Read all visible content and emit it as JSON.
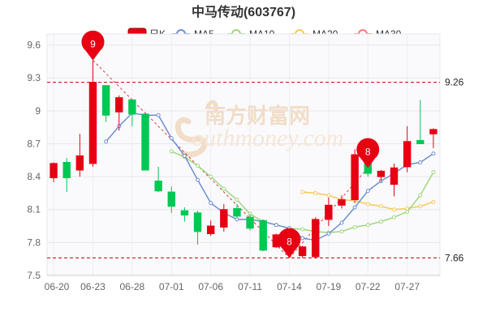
{
  "chart_data": {
    "type": "candlestick",
    "title": "中马传动(603767)",
    "legend": [
      {
        "key": "k",
        "label": "日K",
        "color": "#e60012"
      },
      {
        "key": "ma5",
        "label": "MA5",
        "color": "#6f8fcf"
      },
      {
        "key": "ma10",
        "label": "MA10",
        "color": "#9fd67e"
      },
      {
        "key": "ma20",
        "label": "MA20",
        "color": "#f7c85a"
      },
      {
        "key": "ma30",
        "label": "MA30",
        "color": "#f07b7b"
      }
    ],
    "legend_position": "top",
    "y_ticks": [
      "7.5",
      "7.8",
      "8.1",
      "8.4",
      "8.7",
      "9",
      "9.3",
      "9.6"
    ],
    "ylim": [
      7.5,
      9.7
    ],
    "x_tick_labels": [
      {
        "i": 0,
        "label": "06-20"
      },
      {
        "i": 3,
        "label": "06-23"
      },
      {
        "i": 6,
        "label": "06-28"
      },
      {
        "i": 9,
        "label": "07-01"
      },
      {
        "i": 12,
        "label": "07-06"
      },
      {
        "i": 15,
        "label": "07-11"
      },
      {
        "i": 18,
        "label": "07-14"
      },
      {
        "i": 21,
        "label": "07-19"
      },
      {
        "i": 24,
        "label": "07-22"
      },
      {
        "i": 27,
        "label": "07-27"
      }
    ],
    "up_color": "#e60012",
    "down_color": "#00c853",
    "grid": true,
    "candles": [
      {
        "o": 8.39,
        "c": 8.52,
        "h": 8.53,
        "l": 8.35
      },
      {
        "o": 8.53,
        "c": 8.39,
        "h": 8.57,
        "l": 8.26
      },
      {
        "o": 8.46,
        "c": 8.59,
        "h": 8.79,
        "l": 8.4
      },
      {
        "o": 8.52,
        "c": 9.26,
        "h": 9.46,
        "l": 8.49
      },
      {
        "o": 9.23,
        "c": 8.96,
        "h": 9.23,
        "l": 8.9
      },
      {
        "o": 8.99,
        "c": 9.12,
        "h": 9.14,
        "l": 8.82
      },
      {
        "o": 9.1,
        "c": 8.97,
        "h": 9.1,
        "l": 8.86
      },
      {
        "o": 8.97,
        "c": 8.46,
        "h": 8.97,
        "l": 8.46
      },
      {
        "o": 8.36,
        "c": 8.27,
        "h": 8.49,
        "l": 8.26
      },
      {
        "o": 8.26,
        "c": 8.13,
        "h": 8.31,
        "l": 8.07
      },
      {
        "o": 8.09,
        "c": 8.05,
        "h": 8.12,
        "l": 7.99
      },
      {
        "o": 8.07,
        "c": 7.9,
        "h": 8.09,
        "l": 7.78
      },
      {
        "o": 7.88,
        "c": 7.95,
        "h": 8.0,
        "l": 7.86
      },
      {
        "o": 7.94,
        "c": 8.1,
        "h": 8.15,
        "l": 7.9
      },
      {
        "o": 8.11,
        "c": 8.04,
        "h": 8.15,
        "l": 8.02
      },
      {
        "o": 8.03,
        "c": 7.93,
        "h": 8.06,
        "l": 7.91
      },
      {
        "o": 8.0,
        "c": 7.73,
        "h": 8.0,
        "l": 7.72
      },
      {
        "o": 7.76,
        "c": 7.87,
        "h": 7.88,
        "l": 7.75
      },
      {
        "o": 7.91,
        "c": 7.79,
        "h": 7.91,
        "l": 7.66
      },
      {
        "o": 7.68,
        "c": 7.76,
        "h": 7.77,
        "l": 7.66
      },
      {
        "o": 7.67,
        "c": 8.01,
        "h": 8.03,
        "l": 7.66
      },
      {
        "o": 8.01,
        "c": 8.14,
        "h": 8.21,
        "l": 7.95
      },
      {
        "o": 8.14,
        "c": 8.19,
        "h": 8.23,
        "l": 8.11
      },
      {
        "o": 8.19,
        "c": 8.6,
        "h": 8.65,
        "l": 8.16
      },
      {
        "o": 8.63,
        "c": 8.43,
        "h": 8.7,
        "l": 8.4
      },
      {
        "o": 8.4,
        "c": 8.45,
        "h": 8.46,
        "l": 8.35
      },
      {
        "o": 8.33,
        "c": 8.48,
        "h": 8.52,
        "l": 8.22
      },
      {
        "o": 8.49,
        "c": 8.72,
        "h": 8.86,
        "l": 8.44
      },
      {
        "o": 8.73,
        "c": 8.7,
        "h": 9.1,
        "l": 8.7
      },
      {
        "o": 8.79,
        "c": 8.83,
        "h": 8.84,
        "l": 8.66
      }
    ],
    "ma5": [
      null,
      null,
      null,
      null,
      8.72,
      8.86,
      8.98,
      8.96,
      8.96,
      8.75,
      8.59,
      8.37,
      8.16,
      8.07,
      8.01,
      8.01,
      7.99,
      7.96,
      7.93,
      7.84,
      7.82,
      7.88,
      7.98,
      8.12,
      8.27,
      8.36,
      8.43,
      8.51,
      8.53,
      8.61
    ],
    "ma10": [
      null,
      null,
      null,
      null,
      null,
      null,
      null,
      null,
      null,
      8.63,
      8.58,
      8.5,
      8.4,
      8.29,
      8.19,
      8.06,
      7.99,
      7.96,
      7.93,
      7.92,
      7.9,
      7.89,
      7.9,
      7.94,
      7.96,
      7.99,
      8.03,
      8.08,
      8.23,
      8.44
    ],
    "ma20": [
      null,
      null,
      null,
      null,
      null,
      null,
      null,
      null,
      null,
      null,
      null,
      null,
      null,
      null,
      null,
      null,
      null,
      null,
      null,
      8.26,
      8.25,
      8.23,
      8.19,
      8.18,
      8.15,
      8.13,
      8.1,
      8.11,
      8.13,
      8.17
    ],
    "ref_lines": [
      {
        "value": 9.26,
        "label": "9.26"
      },
      {
        "value": 7.66,
        "label": "7.66"
      }
    ],
    "markers": [
      {
        "i": 3,
        "price": 9.46,
        "label": "9"
      },
      {
        "i": 18,
        "price": 7.66,
        "label": "8"
      },
      {
        "i": 24,
        "price": 8.48,
        "label": "8"
      }
    ],
    "watermark": {
      "cn": "南方财富网",
      "en": "outhmoney.com"
    }
  }
}
